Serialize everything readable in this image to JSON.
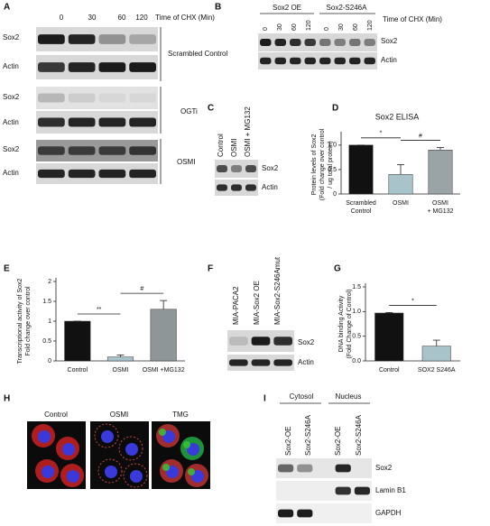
{
  "panels": {
    "A": {
      "letter": "A",
      "lanes": [
        "0",
        "30",
        "60",
        "120"
      ],
      "time_label": "Time of CHX (Min)",
      "rows": [
        "Sox2",
        "Actin",
        "Sox2",
        "Actin",
        "Sox2",
        "Actin"
      ],
      "groups": [
        "Scrambled Control",
        "OGTi",
        "OSMI"
      ]
    },
    "B": {
      "letter": "B",
      "headers": [
        "Sox2 OE",
        "Sox2-S246A"
      ],
      "lanes": [
        "0",
        "30",
        "60",
        "120",
        "0",
        "30",
        "60",
        "120"
      ],
      "time_label": "Time of CHX (Min)",
      "rows": [
        "Sox2",
        "Actin"
      ]
    },
    "C": {
      "letter": "C",
      "lanes": [
        "Control",
        "OSMI",
        "OSMI + MG132"
      ],
      "rows": [
        "Sox2",
        "Actin"
      ]
    },
    "D": {
      "letter": "D"
    },
    "E": {
      "letter": "E"
    },
    "F": {
      "letter": "F",
      "lanes": [
        "MIA-PACA2",
        "MIA-Sox2 OE",
        "MIA-Sox2-S246Amut"
      ],
      "rows": [
        "Sox2",
        "Actin"
      ]
    },
    "G": {
      "letter": "G"
    },
    "H": {
      "letter": "H",
      "labels": [
        "Control",
        "OSMI",
        "TMG"
      ]
    },
    "I": {
      "letter": "I",
      "headers": [
        "Cytosol",
        "Nucleus"
      ],
      "lanes": [
        "Sox2-OE",
        "Sox2-S246A",
        "Sox2-OE",
        "Sox2-S246A"
      ],
      "rows": [
        "Sox2",
        "Lamin B1",
        "GAPDH"
      ]
    }
  },
  "chart_data": [
    {
      "type": "bar",
      "title": "Sox2 ELISA",
      "ylabel": [
        "Protein levels of Sox2",
        "(Fold change over control",
        "/ ug total protein)"
      ],
      "categories": [
        "Scrambled Control",
        "OSMI",
        "OSMI + MG132"
      ],
      "values": [
        1.0,
        0.4,
        0.9
      ],
      "errors": [
        0,
        0.2,
        0.05
      ],
      "colors": [
        "#111111",
        "#a9c3cb",
        "#9aa3a5"
      ],
      "ylim": [
        0,
        1.2
      ],
      "yticks": [
        0,
        0.5,
        {
          "value": 1,
          "label": "1.0"
        }
      ],
      "annotations": [
        "*",
        "#"
      ]
    },
    {
      "type": "bar",
      "ylabel": [
        "Transcriptional activity of Sox2",
        "Fold change over control"
      ],
      "categories": [
        "Control",
        "OSMI",
        "OSMI +MG132"
      ],
      "values": [
        1.0,
        0.1,
        1.3
      ],
      "errors": [
        0,
        0.05,
        0.22
      ],
      "colors": [
        "#111111",
        "#a9c3cb",
        "#8e9698"
      ],
      "ylim": [
        0,
        2
      ],
      "yticks": [
        0,
        0.5,
        1,
        1.5,
        2
      ],
      "annotations": [
        "**",
        "#"
      ]
    },
    {
      "type": "bar",
      "ylabel": [
        "DNA binding Activity",
        "(Fold Change of Control)"
      ],
      "categories": [
        "Control",
        "SOX2 S246A"
      ],
      "values": [
        0.97,
        0.3
      ],
      "errors": [
        0.01,
        0.12
      ],
      "colors": [
        "#111111",
        "#a9c3cb"
      ],
      "ylim": [
        0,
        1.5
      ],
      "yticks": [
        {
          "value": 0,
          "label": "0.0"
        },
        0.5,
        {
          "value": 1,
          "label": "1.0"
        },
        1.5
      ],
      "annotations": [
        "*"
      ]
    }
  ]
}
